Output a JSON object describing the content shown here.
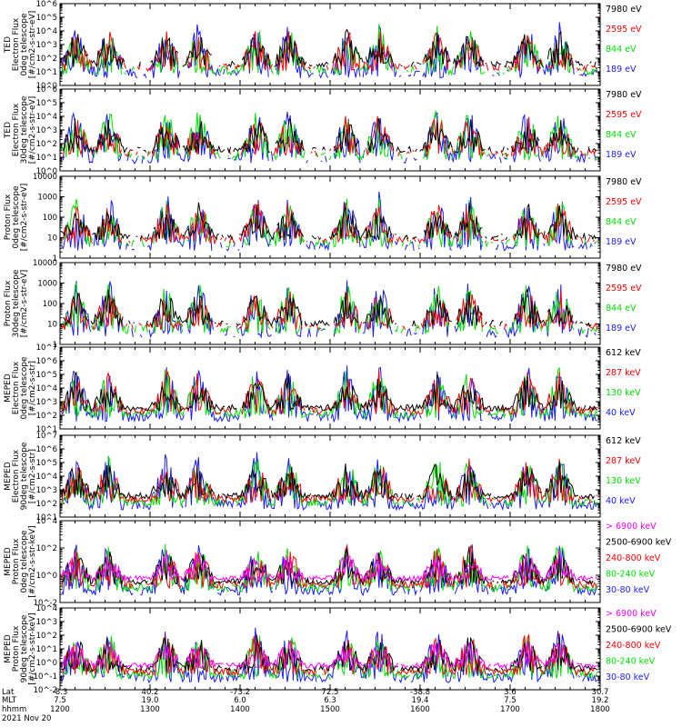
{
  "colors": {
    "blue": "#1a1aff",
    "red": "#ff0000",
    "green": "#00e000",
    "black": "#000000",
    "magenta": "#ff00ff"
  },
  "chart_data": [
    {
      "type": "line",
      "ylabel": [
        "TED",
        "Electron Flux",
        "0deg telescope",
        "[#/cm2-s-str-eV]"
      ],
      "ylim": [
        1,
        1000000
      ],
      "log": true,
      "ytick_labels": [
        "10^0",
        "10^1",
        "10^2",
        "10^3",
        "10^4",
        "10^5",
        "10^6"
      ],
      "series": [
        {
          "name": "7980 eV",
          "color": "black"
        },
        {
          "name": "2595 eV",
          "color": "red"
        },
        {
          "name": "844 eV",
          "color": "green"
        },
        {
          "name": "189 eV",
          "color": "blue"
        }
      ]
    },
    {
      "type": "line",
      "ylabel": [
        "TED",
        "Electron Flux",
        "30deg telescope",
        "[#/cm2-s-str-eV]"
      ],
      "ylim": [
        1,
        1000000
      ],
      "log": true,
      "ytick_labels": [
        "10^0",
        "10^1",
        "10^2",
        "10^3",
        "10^4",
        "10^5",
        "10^6"
      ],
      "series": [
        {
          "name": "7980 eV",
          "color": "black"
        },
        {
          "name": "2595 eV",
          "color": "red"
        },
        {
          "name": "844 eV",
          "color": "green"
        },
        {
          "name": "189 eV",
          "color": "blue"
        }
      ]
    },
    {
      "type": "line",
      "ylabel": [
        "Proton Flux",
        "0deg telescope",
        "[#/cm2-s-str-eV]"
      ],
      "ylim": [
        1,
        10000
      ],
      "log": true,
      "ytick_labels": [
        "1",
        "10",
        "100",
        "1000",
        "10000"
      ],
      "series": [
        {
          "name": "7980 eV",
          "color": "black"
        },
        {
          "name": "2595 eV",
          "color": "red"
        },
        {
          "name": "844 eV",
          "color": "green"
        },
        {
          "name": "189 eV",
          "color": "blue"
        }
      ]
    },
    {
      "type": "line",
      "ylabel": [
        "Proton Flux",
        "30deg telescope",
        "[#/cm2-s-str-eV]"
      ],
      "ylim": [
        1,
        10000
      ],
      "log": true,
      "ytick_labels": [
        "1",
        "10",
        "100",
        "1000",
        "10000"
      ],
      "series": [
        {
          "name": "7980 eV",
          "color": "black"
        },
        {
          "name": "2595 eV",
          "color": "red"
        },
        {
          "name": "844 eV",
          "color": "green"
        },
        {
          "name": "189 eV",
          "color": "blue"
        }
      ]
    },
    {
      "type": "line",
      "ylabel": [
        "MEPED",
        "Electron Flux",
        "0deg telescope",
        "[#/cm2-s-str]"
      ],
      "ylim": [
        10,
        10000000
      ],
      "log": true,
      "ytick_labels": [
        "10^1",
        "10^2",
        "10^3",
        "10^4",
        "10^5",
        "10^6",
        "10^7"
      ],
      "series": [
        {
          "name": "612 keV",
          "color": "black"
        },
        {
          "name": "287 keV",
          "color": "red"
        },
        {
          "name": "130 keV",
          "color": "green"
        },
        {
          "name": "40 keV",
          "color": "blue"
        }
      ]
    },
    {
      "type": "line",
      "ylabel": [
        "MEPED",
        "Electron Flux",
        "90deg telescope",
        "[#/cm2-s-str]"
      ],
      "ylim": [
        10,
        10000000
      ],
      "log": true,
      "ytick_labels": [
        "10^1",
        "10^2",
        "10^3",
        "10^4",
        "10^5",
        "10^6",
        "10^7"
      ],
      "series": [
        {
          "name": "612 keV",
          "color": "black"
        },
        {
          "name": "287 keV",
          "color": "red"
        },
        {
          "name": "130 keV",
          "color": "green"
        },
        {
          "name": "40 keV",
          "color": "blue"
        }
      ]
    },
    {
      "type": "line",
      "ylabel": [
        "MEPED",
        "Proton Flux",
        "0deg telescope",
        "[#/cm2-s-str-keV]"
      ],
      "ylim": [
        0.01,
        10000
      ],
      "log": true,
      "ytick_labels": [
        "10^-2",
        "10^0",
        "10^2",
        "10^4"
      ],
      "series": [
        {
          "name": "> 6900 keV",
          "color": "magenta"
        },
        {
          "name": "2500-6900 keV",
          "color": "black"
        },
        {
          "name": "240-800 keV",
          "color": "red"
        },
        {
          "name": "80-240 keV",
          "color": "green"
        },
        {
          "name": "30-80 keV",
          "color": "blue"
        }
      ]
    },
    {
      "type": "line",
      "ylabel": [
        "MEPED",
        "Proton Flux",
        "90deg telescope",
        "[#/cm2-s-str-keV]"
      ],
      "ylim": [
        0.01,
        10000
      ],
      "log": true,
      "ytick_labels": [
        "10^-2",
        "10^-1",
        "10^0",
        "10^1",
        "10^2",
        "10^3",
        "10^4"
      ],
      "series": [
        {
          "name": "> 6900 keV",
          "color": "magenta"
        },
        {
          "name": "2500-6900 keV",
          "color": "black"
        },
        {
          "name": "240-800 keV",
          "color": "red"
        },
        {
          "name": "80-240 keV",
          "color": "green"
        },
        {
          "name": "30-80 keV",
          "color": "blue"
        }
      ]
    }
  ],
  "x_axis": {
    "row_labels": [
      "Lat",
      "MLT",
      "hhmm",
      "2021 Nov 20"
    ],
    "ticks": [
      {
        "lat": "-8.3",
        "mlt": "7.5",
        "hhmm": "1200"
      },
      {
        "lat": "40.2",
        "mlt": "19.0",
        "hhmm": "1300"
      },
      {
        "lat": "-73.2",
        "mlt": "6.0",
        "hhmm": "1400"
      },
      {
        "lat": "72.5",
        "mlt": "6.3",
        "hhmm": "1500"
      },
      {
        "lat": "-38.8",
        "mlt": "19.4",
        "hhmm": "1600"
      },
      {
        "lat": "3.6",
        "mlt": "7.5",
        "hhmm": "1700"
      },
      {
        "lat": "30.7",
        "mlt": "19.2",
        "hhmm": "1800"
      }
    ]
  }
}
